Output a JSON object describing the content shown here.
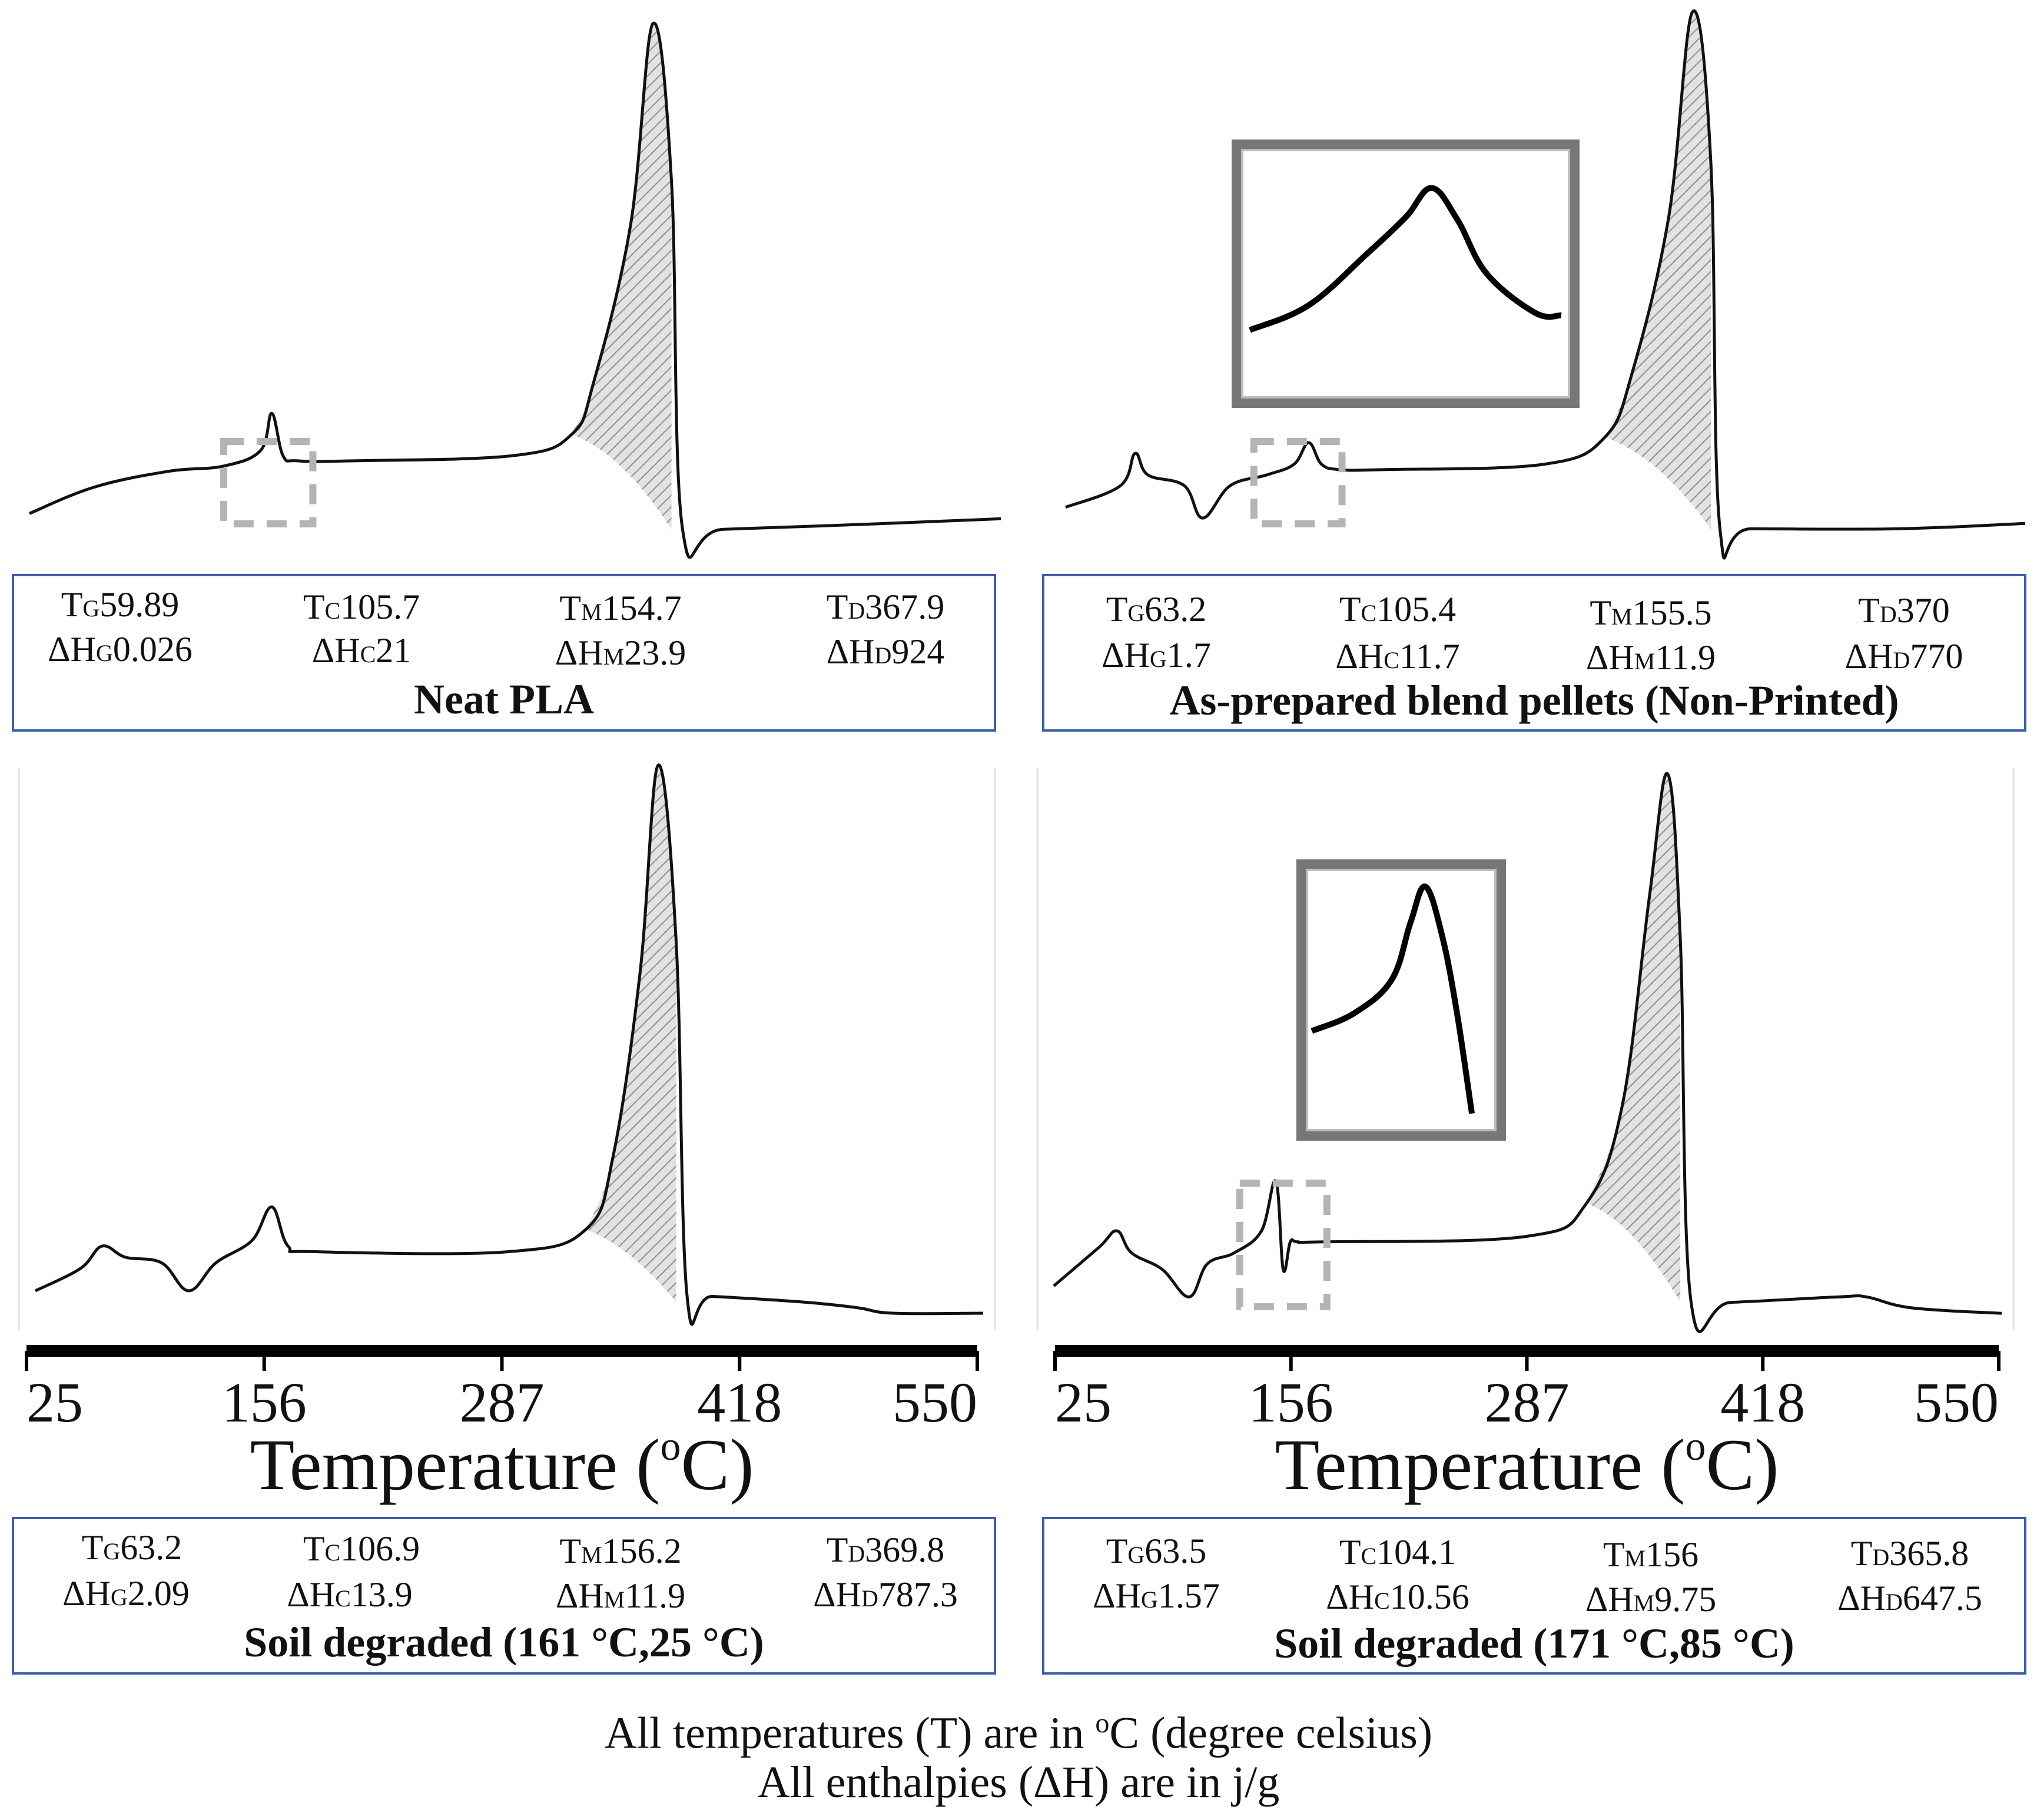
{
  "chart_data": [
    {
      "type": "line",
      "panel": "top-left",
      "title": "Neat PLA",
      "inset": false,
      "legend": {
        "TG": "59.89",
        "dHG": "0.026",
        "TC": "105.7",
        "dHC": "21",
        "TM": "154.7",
        "dHM": "23.9",
        "TD": "367.9",
        "dHD": "924"
      },
      "x": [
        25,
        60,
        100,
        130,
        150,
        156,
        162,
        170,
        200,
        287,
        318,
        330,
        350,
        362,
        372,
        378,
        400,
        480,
        550
      ],
      "y": [
        0.07,
        0.12,
        0.15,
        0.16,
        0.19,
        0.26,
        0.18,
        0.17,
        0.17,
        0.18,
        0.22,
        0.32,
        0.62,
        1.0,
        0.7,
        0.04,
        0.04,
        0.05,
        0.06
      ]
    },
    {
      "type": "line",
      "panel": "top-right",
      "title": "As-prepared blend pellets (Non-Printed)",
      "inset": true,
      "legend": {
        "TG": "63.2",
        "dHG": "1.7",
        "TC": "105.4",
        "dHC": "11.7",
        "TM": "155.5",
        "dHM": "11.9",
        "TD": "370",
        "dHD": "770"
      },
      "x": [
        25,
        55,
        63,
        70,
        90,
        100,
        115,
        135,
        150,
        158,
        165,
        175,
        200,
        287,
        320,
        335,
        355,
        368,
        378,
        383,
        400,
        480,
        550
      ],
      "y": [
        0.08,
        0.12,
        0.18,
        0.14,
        0.12,
        0.06,
        0.12,
        0.14,
        0.16,
        0.2,
        0.16,
        0.15,
        0.15,
        0.16,
        0.21,
        0.33,
        0.62,
        1.0,
        0.72,
        0.04,
        0.04,
        0.04,
        0.05
      ]
    },
    {
      "type": "line",
      "panel": "bottom-left",
      "title": "Soil degraded (161 °C,25 °C)",
      "inset": false,
      "legend": {
        "TG": "63.2",
        "dHG": "2.09",
        "TC": "106.9",
        "dHC": "13.9",
        "TM": "156.2",
        "dHM": "11.9",
        "TD": "369.8",
        "dHD": "787.3"
      },
      "x": [
        25,
        50,
        62,
        75,
        95,
        110,
        125,
        145,
        156,
        165,
        180,
        287,
        330,
        345,
        360,
        370,
        380,
        386,
        400,
        450,
        480,
        500,
        550
      ],
      "y": [
        0.06,
        0.1,
        0.14,
        0.12,
        0.11,
        0.06,
        0.11,
        0.15,
        0.21,
        0.14,
        0.13,
        0.13,
        0.17,
        0.3,
        0.63,
        1.0,
        0.68,
        0.05,
        0.05,
        0.04,
        0.03,
        0.02,
        0.02
      ]
    },
    {
      "type": "line",
      "panel": "bottom-right",
      "title": "Soil  degraded (171 °C,85 °C)",
      "inset": true,
      "legend": {
        "TG": "63.5",
        "dHG": "1.57",
        "TC": "104.1",
        "dHC": "10.56",
        "TM": "156",
        "dHM": "9.75",
        "TD": "365.8",
        "dHD": "647.5"
      },
      "x": [
        25,
        50,
        60,
        68,
        85,
        100,
        110,
        125,
        140,
        148,
        152,
        156,
        160,
        175,
        287,
        320,
        340,
        355,
        365,
        372,
        378,
        400,
        460,
        475,
        500,
        550
      ],
      "y": [
        0.07,
        0.14,
        0.17,
        0.13,
        0.1,
        0.05,
        0.11,
        0.13,
        0.17,
        0.26,
        0.1,
        0.15,
        0.15,
        0.15,
        0.16,
        0.22,
        0.4,
        0.78,
        1.0,
        0.7,
        0.04,
        0.04,
        0.05,
        0.05,
        0.03,
        0.02
      ]
    }
  ],
  "axis": {
    "ticks": [
      "25",
      "156",
      "287",
      "418",
      "550"
    ],
    "xlabel_main": "Temperature (",
    "xlabel_sup": "o",
    "xlabel_end": "C)",
    "xlim": [
      25,
      550
    ]
  },
  "labels": {
    "T": "T",
    "dH": "ΔH",
    "sub_g": "G",
    "sub_c": "C",
    "sub_m": "M",
    "sub_d": "D"
  },
  "footnote": {
    "line1_a": "All temperatures (T) are in ",
    "line1_sup": "o",
    "line1_b": "C (degree celsius)",
    "line2": "All enthalpies (ΔH) are in j/g"
  },
  "colors": {
    "curve": "#111111",
    "hatch": "#9a9a9a",
    "box_border": "#3d5fa8",
    "dashed_box": "#b4b4b4",
    "inset_frame": "#777777"
  }
}
